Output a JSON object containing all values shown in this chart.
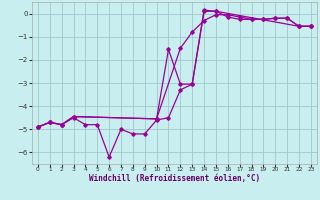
{
  "xlabel": "Windchill (Refroidissement éolien,°C)",
  "bg_color": "#c8eef0",
  "grid_color": "#a0c8c8",
  "line_color": "#990099",
  "xlim": [
    -0.5,
    23.5
  ],
  "ylim": [
    -6.5,
    0.5
  ],
  "yticks": [
    0,
    -1,
    -2,
    -3,
    -4,
    -5,
    -6
  ],
  "xticks": [
    0,
    1,
    2,
    3,
    4,
    5,
    6,
    7,
    8,
    9,
    10,
    11,
    12,
    13,
    14,
    15,
    16,
    17,
    18,
    19,
    20,
    21,
    22,
    23
  ],
  "series1_x": [
    0,
    1,
    2,
    3,
    4,
    5,
    6,
    7,
    8,
    9,
    10,
    11,
    12,
    13,
    14,
    15,
    16,
    17,
    18,
    19,
    20,
    21,
    22,
    23
  ],
  "series1_y": [
    -4.9,
    -4.7,
    -4.8,
    -4.5,
    -4.8,
    -4.8,
    -6.2,
    -5.0,
    -5.2,
    -5.2,
    -4.6,
    -4.5,
    -3.3,
    -3.05,
    0.15,
    0.1,
    -0.15,
    -0.25,
    -0.25,
    -0.25,
    -0.2,
    -0.2,
    -0.55,
    -0.55
  ],
  "series2_x": [
    0,
    1,
    2,
    3,
    10,
    12,
    13,
    14,
    15,
    16,
    17,
    18,
    19,
    20,
    21,
    22,
    23
  ],
  "series2_y": [
    -4.9,
    -4.7,
    -4.8,
    -4.45,
    -4.55,
    -1.5,
    -0.8,
    -0.3,
    -0.05,
    -0.05,
    -0.15,
    -0.25,
    -0.25,
    -0.2,
    -0.2,
    -0.55,
    -0.55
  ],
  "series3_x": [
    0,
    1,
    2,
    3,
    10,
    11,
    12,
    13,
    14,
    15,
    22,
    23
  ],
  "series3_y": [
    -4.9,
    -4.7,
    -4.8,
    -4.45,
    -4.55,
    -1.55,
    -3.05,
    -3.05,
    0.1,
    0.1,
    -0.55,
    -0.55
  ]
}
